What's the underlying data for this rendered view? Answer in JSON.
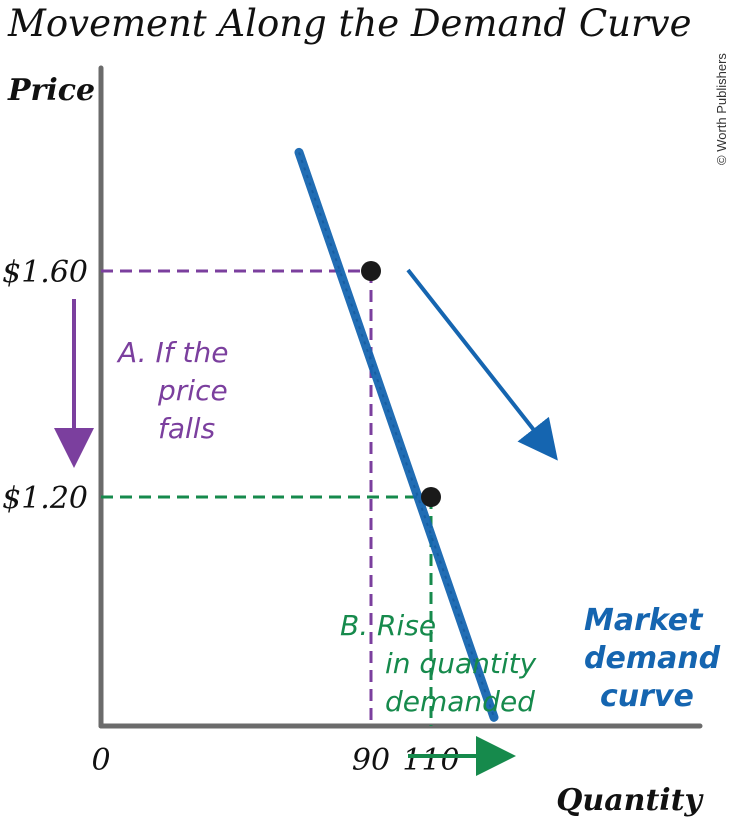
{
  "colors": {
    "curve": "#1565b0",
    "price_change": "#7b3f9e",
    "quantity_change": "#168a4c",
    "axis": "#6b6b6b",
    "point": "#1a1a1a"
  },
  "chart_data": {
    "type": "line",
    "title": "Movement Along the Demand Curve",
    "xlabel": "Quantity",
    "ylabel": "Price",
    "xlim": [
      0,
      145
    ],
    "ylim": [
      0.5,
      2.0
    ],
    "x_ticks": [
      {
        "value": 0,
        "label": "0"
      },
      {
        "value": 90,
        "label": "90"
      },
      {
        "value": 110,
        "label": "110"
      }
    ],
    "y_ticks": [
      {
        "value": 1.6,
        "label": "$1.60"
      },
      {
        "value": 1.2,
        "label": "$1.20"
      }
    ],
    "series": [
      {
        "name": "Market demand curve",
        "x": [
          66,
          131
        ],
        "y": [
          1.81,
          0.81
        ]
      }
    ],
    "points": [
      {
        "x": 90,
        "y": 1.6
      },
      {
        "x": 110,
        "y": 1.2
      }
    ],
    "annotations": {
      "price_note": [
        "A. If the",
        "price",
        "falls"
      ],
      "quantity_note": [
        "B. Rise",
        "in quantity",
        "demanded"
      ],
      "curve_label": [
        "Market",
        "demand",
        "curve"
      ]
    },
    "credit": "© Worth Publishers",
    "grid": false,
    "legend": "none"
  }
}
